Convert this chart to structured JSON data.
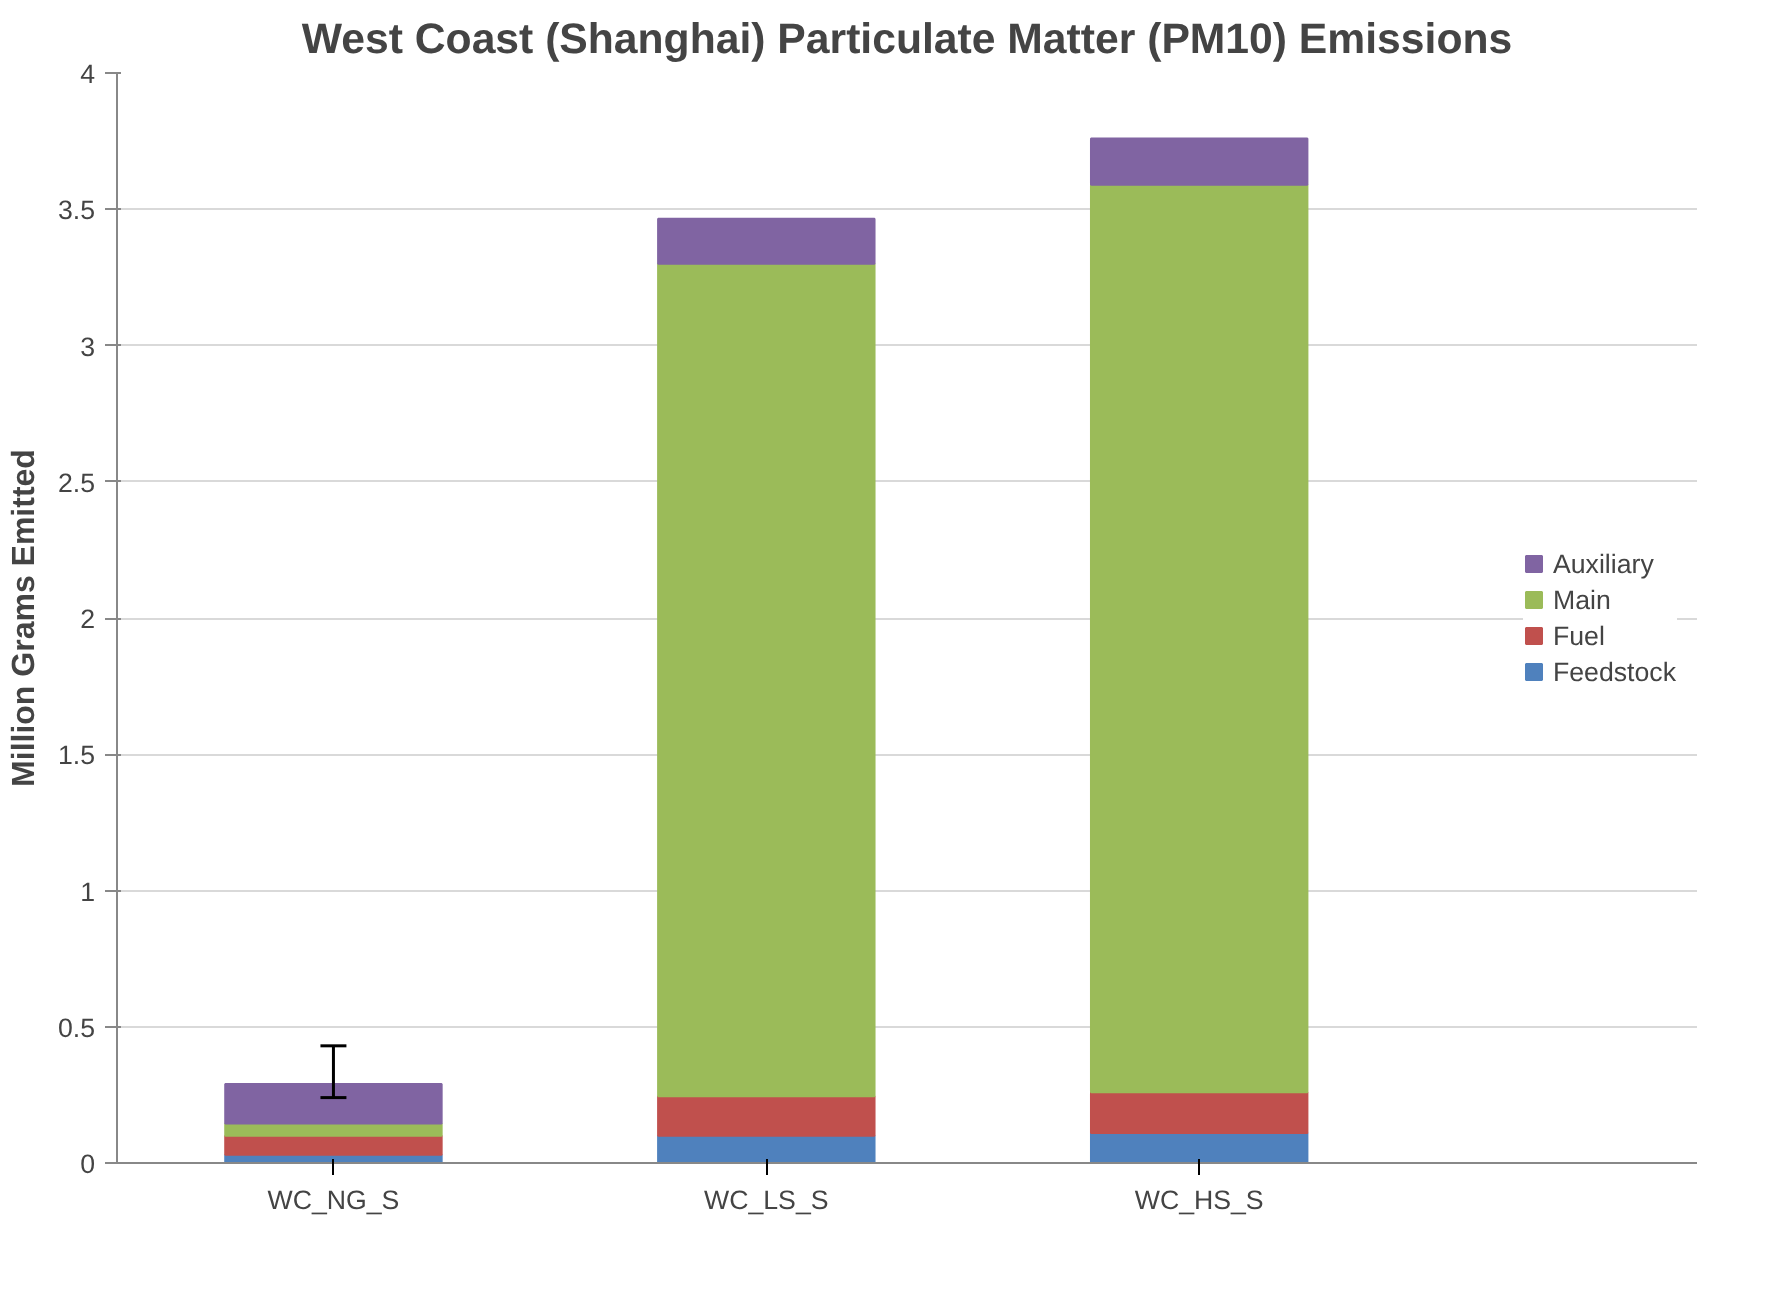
{
  "chart_data": {
    "type": "bar",
    "title": "West Coast (Shanghai) Particulate Matter (PM10) Emissions",
    "ylabel": "Million Grams Emitted",
    "categories": [
      "WC_NG_S",
      "WC_LS_S",
      "WC_HS_S"
    ],
    "stacked": true,
    "series": [
      {
        "name": "Feedstock",
        "color": "#4f81bd",
        "values": [
          0.03,
          0.1,
          0.11
        ]
      },
      {
        "name": "Fuel",
        "color": "#c0504d",
        "values": [
          0.07,
          0.145,
          0.15
        ]
      },
      {
        "name": "Main",
        "color": "#9bbb59",
        "values": [
          0.045,
          3.055,
          3.33
        ]
      },
      {
        "name": "Auxiliary",
        "color": "#8064a2",
        "values": [
          0.145,
          0.165,
          0.17
        ],
        "errors": [
          [
            0.24,
            0.43
          ],
          null,
          null
        ]
      }
    ],
    "ylim": [
      0,
      4
    ],
    "yticks": [
      0,
      0.5,
      1,
      1.5,
      2,
      2.5,
      3,
      3.5,
      4
    ],
    "grid": "y",
    "legend": "right"
  }
}
